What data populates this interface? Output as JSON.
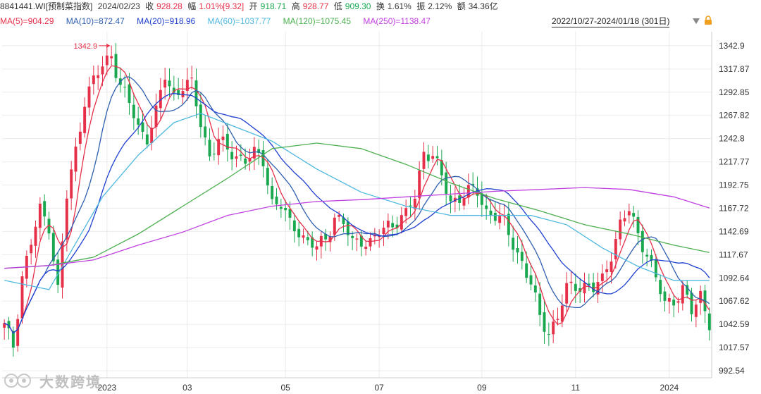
{
  "header": {
    "code": "8841441.WI[预制菜指数]",
    "date": "2024/02/23",
    "close_label": "收",
    "close_value": "928.28",
    "change_label": "幅",
    "change_value": "1.01%[9.32]",
    "open_label": "开",
    "open_value": "918.71",
    "high_label": "高",
    "high_value": "928.77",
    "low_label": "低",
    "low_value": "909.30",
    "turnover_label": "换",
    "turnover_value": "1.61%",
    "amplitude_label": "振",
    "amplitude_value": "2.12%",
    "amount_label": "额",
    "amount_value": "34.36亿"
  },
  "ma_legend": [
    {
      "text": "MA(5)=904.29",
      "color": "#e6304a"
    },
    {
      "text": "MA(10)=872.47",
      "color": "#2f5fb0"
    },
    {
      "text": "MA(20)=918.96",
      "color": "#1f3fd0"
    },
    {
      "text": "MA(60)=1037.77",
      "color": "#4fb8e0"
    },
    {
      "text": "MA(120)=1075.45",
      "color": "#4caf50"
    },
    {
      "text": "MA(250)=1138.47",
      "color": "#c040e0"
    }
  ],
  "range_text": "2022/10/27-2024/01/18 (301日)",
  "icons": {
    "dropdown": "triangle-down-icon",
    "lock": "lock-icon"
  },
  "watermark_text": "大数跨境",
  "chart_data": {
    "type": "candlestick",
    "y_ticks": [
      "1342.9",
      "1317.87",
      "1292.85",
      "1267.82",
      "1242.8",
      "1217.77",
      "1192.75",
      "1167.72",
      "1142.69",
      "1117.67",
      "1092.64",
      "1067.62",
      "1042.59",
      "1017.57",
      "992.54"
    ],
    "ylim": [
      985,
      1358
    ],
    "x_ticks": [
      "2023",
      "03",
      "05",
      "07",
      "09",
      "11",
      "2024"
    ],
    "x_tick_index": [
      23,
      41,
      63,
      84,
      107,
      128,
      149
    ],
    "n_bars": 159,
    "annotation": {
      "text": "1342.9",
      "bar_index": 24,
      "value": 1342.9
    },
    "colors": {
      "up": "#e6304a",
      "down": "#1aa84f"
    },
    "ohlc_anchors": [
      [
        0,
        1040
      ],
      [
        2,
        1020
      ],
      [
        4,
        1095
      ],
      [
        6,
        1130
      ],
      [
        8,
        1165
      ],
      [
        10,
        1150
      ],
      [
        12,
        1080
      ],
      [
        14,
        1180
      ],
      [
        16,
        1230
      ],
      [
        18,
        1285
      ],
      [
        20,
        1305
      ],
      [
        22,
        1320
      ],
      [
        24,
        1335
      ],
      [
        26,
        1300
      ],
      [
        28,
        1280
      ],
      [
        30,
        1255
      ],
      [
        32,
        1245
      ],
      [
        34,
        1270
      ],
      [
        36,
        1310
      ],
      [
        38,
        1290
      ],
      [
        40,
        1300
      ],
      [
        42,
        1300
      ],
      [
        44,
        1260
      ],
      [
        46,
        1225
      ],
      [
        48,
        1240
      ],
      [
        50,
        1230
      ],
      [
        52,
        1225
      ],
      [
        54,
        1220
      ],
      [
        56,
        1225
      ],
      [
        58,
        1220
      ],
      [
        60,
        1175
      ],
      [
        62,
        1170
      ],
      [
        64,
        1150
      ],
      [
        66,
        1145
      ],
      [
        68,
        1130
      ],
      [
        70,
        1125
      ],
      [
        72,
        1135
      ],
      [
        74,
        1160
      ],
      [
        76,
        1150
      ],
      [
        78,
        1130
      ],
      [
        80,
        1135
      ],
      [
        82,
        1130
      ],
      [
        84,
        1140
      ],
      [
        86,
        1150
      ],
      [
        88,
        1155
      ],
      [
        90,
        1160
      ],
      [
        92,
        1180
      ],
      [
        94,
        1230
      ],
      [
        96,
        1225
      ],
      [
        98,
        1200
      ],
      [
        100,
        1175
      ],
      [
        102,
        1180
      ],
      [
        104,
        1185
      ],
      [
        106,
        1185
      ],
      [
        108,
        1165
      ],
      [
        110,
        1160
      ],
      [
        112,
        1150
      ],
      [
        114,
        1130
      ],
      [
        116,
        1110
      ],
      [
        118,
        1085
      ],
      [
        120,
        1050
      ],
      [
        122,
        1035
      ],
      [
        124,
        1050
      ],
      [
        126,
        1080
      ],
      [
        128,
        1085
      ],
      [
        130,
        1085
      ],
      [
        132,
        1080
      ],
      [
        134,
        1090
      ],
      [
        136,
        1120
      ],
      [
        138,
        1150
      ],
      [
        140,
        1165
      ],
      [
        142,
        1140
      ],
      [
        144,
        1120
      ],
      [
        146,
        1090
      ],
      [
        148,
        1065
      ],
      [
        150,
        1070
      ],
      [
        152,
        1080
      ],
      [
        154,
        1055
      ],
      [
        156,
        1075
      ],
      [
        157,
        1060
      ],
      [
        158,
        1045
      ]
    ],
    "ma_series": [
      {
        "name": "MA(5)",
        "color": "#e6304a",
        "smooth": 5
      },
      {
        "name": "MA(10)",
        "color": "#2f5fb0",
        "smooth": 10
      },
      {
        "name": "MA(20)",
        "color": "#1f3fd0",
        "smooth": 20
      },
      {
        "name": "MA(60)",
        "color": "#4fb8e0",
        "points": [
          [
            0,
            1090
          ],
          [
            10,
            1080
          ],
          [
            16,
            1130
          ],
          [
            22,
            1180
          ],
          [
            30,
            1225
          ],
          [
            38,
            1260
          ],
          [
            44,
            1270
          ],
          [
            52,
            1255
          ],
          [
            60,
            1240
          ],
          [
            70,
            1210
          ],
          [
            80,
            1185
          ],
          [
            90,
            1170
          ],
          [
            100,
            1160
          ],
          [
            110,
            1160
          ],
          [
            118,
            1160
          ],
          [
            126,
            1150
          ],
          [
            134,
            1125
          ],
          [
            142,
            1105
          ],
          [
            150,
            1090
          ],
          [
            158,
            1090
          ]
        ]
      },
      {
        "name": "MA(120)",
        "color": "#4caf50",
        "points": [
          [
            0,
            1103
          ],
          [
            10,
            1106
          ],
          [
            20,
            1115
          ],
          [
            30,
            1140
          ],
          [
            40,
            1170
          ],
          [
            50,
            1200
          ],
          [
            60,
            1232
          ],
          [
            70,
            1238
          ],
          [
            80,
            1232
          ],
          [
            90,
            1215
          ],
          [
            100,
            1195
          ],
          [
            110,
            1178
          ],
          [
            120,
            1165
          ],
          [
            130,
            1150
          ],
          [
            140,
            1140
          ],
          [
            150,
            1128
          ],
          [
            158,
            1120
          ]
        ]
      },
      {
        "name": "MA(250)",
        "color": "#c040e0",
        "points": [
          [
            0,
            1103
          ],
          [
            10,
            1106
          ],
          [
            20,
            1112
          ],
          [
            30,
            1128
          ],
          [
            40,
            1142
          ],
          [
            50,
            1160
          ],
          [
            60,
            1170
          ],
          [
            70,
            1175
          ],
          [
            80,
            1177
          ],
          [
            90,
            1180
          ],
          [
            100,
            1183
          ],
          [
            110,
            1186
          ],
          [
            120,
            1188
          ],
          [
            130,
            1190
          ],
          [
            140,
            1188
          ],
          [
            150,
            1180
          ],
          [
            158,
            1168
          ]
        ]
      }
    ]
  }
}
